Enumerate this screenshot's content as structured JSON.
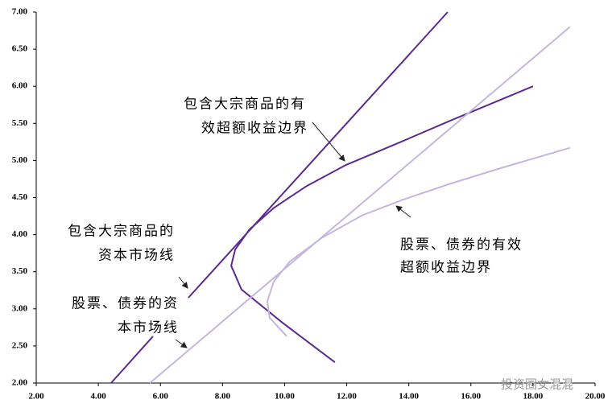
{
  "chart_data": {
    "type": "line",
    "series": [
      {
        "color": "#5b2a8c",
        "x": [
          4.41,
          5.76,
          5.8,
          6.9,
          15.25
        ],
        "values": [
          2.0,
          2.63,
          null,
          3.15,
          7.0
        ]
      },
      {
        "color": "#5b2a8c",
        "x": [
          11.62,
          9.91,
          8.61,
          8.28,
          8.41,
          8.87,
          9.65,
          10.69,
          11.98,
          13.8,
          15.36,
          16.91,
          18.0
        ],
        "values": [
          2.28,
          2.82,
          3.26,
          3.58,
          3.8,
          4.07,
          4.36,
          4.65,
          4.94,
          5.26,
          5.54,
          5.81,
          6.0
        ]
      },
      {
        "color": "#c4b6de",
        "x": [
          5.66,
          19.19
        ],
        "values": [
          2.0,
          6.8
        ]
      },
      {
        "color": "#c4b6de",
        "x": [
          10.07,
          9.52,
          9.44,
          9.65,
          10.17,
          11.21,
          12.5,
          13.8,
          15.36,
          16.91,
          19.19
        ],
        "values": [
          2.63,
          2.88,
          3.1,
          3.37,
          3.64,
          3.96,
          4.26,
          4.47,
          4.69,
          4.89,
          5.17
        ]
      }
    ],
    "xlim": [
      2,
      20
    ],
    "xticks": [
      {
        "value": 2,
        "label": "2.00"
      },
      {
        "value": 4,
        "label": "4.00"
      },
      {
        "value": 6,
        "label": "6.00"
      },
      {
        "value": 8,
        "label": "8.00"
      },
      {
        "value": 10,
        "label": "10.00"
      },
      {
        "value": 12,
        "label": "12.00"
      },
      {
        "value": 14,
        "label": "14.00"
      },
      {
        "value": 16,
        "label": "16.00"
      },
      {
        "value": 18,
        "label": "18.00"
      },
      {
        "value": 20,
        "label": "20.00"
      }
    ],
    "ylim": [
      2,
      7
    ],
    "yticks": [
      {
        "value": 2,
        "label": "2.00"
      },
      {
        "value": 2.5,
        "label": "2.50"
      },
      {
        "value": 3,
        "label": "3.00"
      },
      {
        "value": 3.5,
        "label": "3.50"
      },
      {
        "value": 4,
        "label": "4.00"
      },
      {
        "value": 4.5,
        "label": "4.50"
      },
      {
        "value": 5,
        "label": "5.00"
      },
      {
        "value": 5.5,
        "label": "5.50"
      },
      {
        "value": 6,
        "label": "6.00"
      },
      {
        "value": 6.5,
        "label": "6.50"
      },
      {
        "value": 7,
        "label": "7.00"
      }
    ],
    "annotations": [
      [
        "包含大宗商品的有",
        "效超额收益边界"
      ],
      [
        "包含大宗商品的",
        "资本市场线"
      ],
      [
        "股票、债券的资",
        "本市场线"
      ],
      [
        "股票、债券的有效",
        "超额收益边界"
      ]
    ],
    "watermark": "投资圈女混混"
  }
}
